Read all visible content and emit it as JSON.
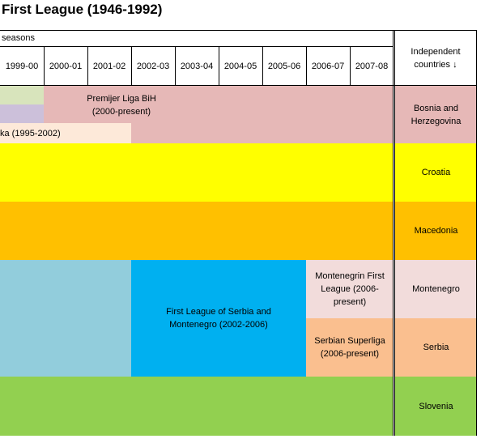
{
  "title": "First League (1946-1992)",
  "header": {
    "seasons_label": "seasons",
    "seasons": [
      "1999-00",
      "2000-01",
      "2001-02",
      "2002-03",
      "2003-04",
      "2004-05",
      "2005-06",
      "2006-07",
      "2007-08"
    ],
    "independent_label": "Independent countries ↓"
  },
  "leagues": {
    "bih": "Premijer Liga BiH (2000-present)",
    "bih_partial": "ka (1995-2002)",
    "scg": "First League of Serbia and Montenegro (2002-2006)",
    "mne": "Montenegrin First League (2006-present)",
    "srb": "Serbian Superliga (2006-present)"
  },
  "countries": {
    "bih": "Bosnia and Herzegovina",
    "cro": "Croatia",
    "mkd": "Macedonia",
    "mne": "Montenegro",
    "srb": "Serbia",
    "slo": "Slovenia"
  },
  "colors": {
    "bih": "#e6b8b7",
    "bih_green": "#d8e4bc",
    "bih_purple": "#ccc0da",
    "bih_peach": "#fde9d9",
    "cro": "#ffff00",
    "mkd": "#ffc000",
    "yug_blue": "#92cddc",
    "scg_blue": "#00b0f0",
    "mne": "#f2dcdb",
    "srb": "#fabf8f",
    "slo": "#92d050"
  }
}
